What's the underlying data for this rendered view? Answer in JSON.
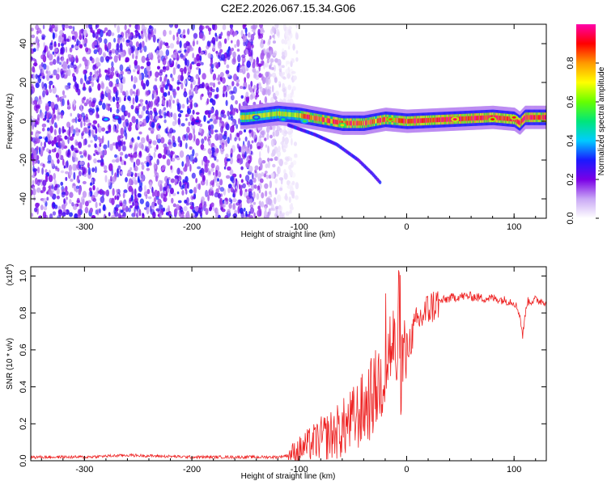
{
  "title": "C2E2.2026.067.15.34.G06",
  "chart_data": [
    {
      "type": "heatmap",
      "name": "spectrogram",
      "xlabel": "Height of straight line (km)",
      "ylabel": "Frequency (Hz)",
      "xlim": [
        -350,
        130
      ],
      "ylim": [
        -50,
        50
      ],
      "xticks": [
        -300,
        -200,
        -100,
        0,
        100
      ],
      "yticks": [
        -40,
        -20,
        0,
        20,
        40
      ],
      "colorbar": {
        "label": "Normalized spectral amplitude",
        "range": [
          0,
          1
        ],
        "ticks": [
          0.0,
          0.2,
          0.4,
          0.6,
          0.8
        ],
        "colors": [
          "#ffffff",
          "#c9a8f5",
          "#7a00e6",
          "#1a1aff",
          "#00ccff",
          "#00e67a",
          "#66ff00",
          "#ffff00",
          "#ff9900",
          "#ff0000",
          "#ff00aa"
        ]
      },
      "features": {
        "noise_region_x": [
          -350,
          -110
        ],
        "main_trace": [
          [
            -150,
            2
          ],
          [
            -120,
            4
          ],
          [
            -100,
            3
          ],
          [
            -80,
            1
          ],
          [
            -60,
            -1
          ],
          [
            -40,
            -1
          ],
          [
            -20,
            1
          ],
          [
            0,
            0
          ],
          [
            40,
            1
          ],
          [
            80,
            2
          ],
          [
            100,
            1
          ],
          [
            105,
            -1
          ],
          [
            110,
            2
          ],
          [
            130,
            2
          ]
        ],
        "falling_tone": [
          [
            -110,
            -2
          ],
          [
            -85,
            -7
          ],
          [
            -65,
            -12
          ],
          [
            -45,
            -20
          ],
          [
            -32,
            -27
          ],
          [
            -24,
            -32
          ]
        ],
        "bright_spots": [
          [
            -280,
            1,
            0.4
          ],
          [
            -270,
            2,
            0.35
          ],
          [
            -195,
            0,
            0.3
          ],
          [
            -140,
            2,
            0.45
          ],
          [
            -115,
            1,
            0.5
          ],
          [
            -95,
            0,
            0.55
          ],
          [
            -60,
            -2,
            0.75
          ],
          [
            -15,
            1,
            0.85
          ],
          [
            45,
            1,
            0.95
          ],
          [
            80,
            1,
            0.9
          ],
          [
            100,
            2,
            0.92
          ]
        ]
      }
    },
    {
      "type": "line",
      "name": "snr",
      "xlabel": "Height of straight line (km)",
      "ylabel": "SNR (10 * v/v)",
      "scale_label": "(x10",
      "scale_exp": "4",
      "scale_close": ")",
      "xlim": [
        -350,
        130
      ],
      "ylim": [
        0,
        1.05
      ],
      "xticks": [
        -300,
        -200,
        -100,
        0,
        100
      ],
      "yticks": [
        0.0,
        0.2,
        0.4,
        0.6,
        0.8,
        1.0
      ],
      "color": "#ee2222",
      "series": [
        {
          "name": "SNR",
          "x": [
            -350,
            -300,
            -260,
            -200,
            -150,
            -120,
            -110,
            -100,
            -90,
            -80,
            -70,
            -60,
            -50,
            -40,
            -30,
            -20,
            -15,
            -10,
            -5,
            0,
            5,
            10,
            20,
            30,
            40,
            50,
            60,
            70,
            80,
            90,
            100,
            105,
            108,
            112,
            120,
            130
          ],
          "y": [
            0.02,
            0.02,
            0.03,
            0.02,
            0.02,
            0.02,
            0.03,
            0.06,
            0.09,
            0.12,
            0.14,
            0.17,
            0.22,
            0.28,
            0.36,
            0.5,
            0.62,
            0.58,
            0.52,
            0.6,
            0.68,
            0.75,
            0.82,
            0.86,
            0.88,
            0.89,
            0.89,
            0.88,
            0.88,
            0.87,
            0.86,
            0.8,
            0.68,
            0.86,
            0.87,
            0.86
          ]
        }
      ]
    }
  ]
}
